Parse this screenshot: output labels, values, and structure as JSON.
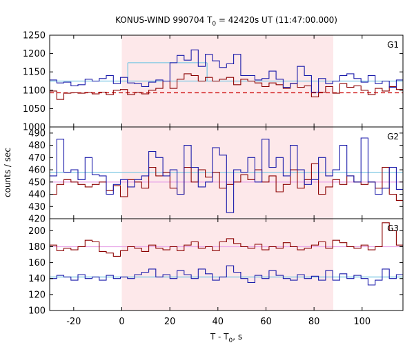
{
  "title": {
    "prefix": "KONUS-WIND 990704 T",
    "sub": "0",
    "suffix": " = 42420s UT (11:47:00.000)"
  },
  "xlabel": {
    "main": "T - T",
    "sub": "0",
    "tail": ", s"
  },
  "ylabel": "counts / sec",
  "colors": {
    "red": "#8b0000",
    "blue": "#1a1aaa",
    "shade": "#fde8ea",
    "cyan": "#7ec8e3",
    "pink": "#e8a8e8",
    "dashed": "#cc0000"
  },
  "chart_data": {
    "type": "line",
    "xlim": [
      -30,
      117
    ],
    "xticks": [
      -20,
      0,
      20,
      40,
      60,
      80,
      100
    ],
    "shaded_interval": [
      0,
      88
    ],
    "bin_width": 2.944,
    "panels": [
      {
        "name": "G1",
        "ylim": [
          1000,
          1250
        ],
        "yticks": [
          1000,
          1050,
          1100,
          1150,
          1200,
          1250
        ],
        "x_start": -30,
        "series": [
          {
            "name": "red",
            "color": "red",
            "values": [
              1098,
              1075,
              1092,
              1093,
              1092,
              1094,
              1090,
              1095,
              1088,
              1100,
              1102,
              1088,
              1094,
              1090,
              1100,
              1105,
              1125,
              1105,
              1130,
              1145,
              1140,
              1125,
              1135,
              1125,
              1130,
              1135,
              1115,
              1130,
              1125,
              1120,
              1110,
              1120,
              1115,
              1105,
              1118,
              1108,
              1112,
              1082,
              1095,
              1110,
              1092,
              1118,
              1108,
              1112,
              1100,
              1088,
              1105,
              1098,
              1110,
              1102,
              1098,
              1095,
              1078,
              1085,
              1095,
              1098,
              1088,
              1090,
              1070
            ]
          },
          {
            "name": "blue",
            "color": "blue",
            "values": [
              1128,
              1120,
              1122,
              1112,
              1115,
              1130,
              1125,
              1132,
              1140,
              1118,
              1135,
              1120,
              1118,
              1110,
              1122,
              1128,
              1125,
              1175,
              1195,
              1182,
              1210,
              1165,
              1198,
              1180,
              1162,
              1172,
              1198,
              1140,
              1140,
              1128,
              1132,
              1152,
              1130,
              1108,
              1118,
              1165,
              1140,
              1095,
              1132,
              1118,
              1125,
              1140,
              1145,
              1132,
              1122,
              1140,
              1118,
              1125,
              1108,
              1128,
              1112,
              1130,
              1120,
              1115,
              1155,
              1098,
              1118,
              1110,
              1100
            ]
          }
        ],
        "fits": [
          {
            "color": "cyan",
            "from": -30,
            "to": 117,
            "y": 1125,
            "style": "solid"
          },
          {
            "color": "dashed",
            "from": -30,
            "to": 117,
            "y": 1093,
            "style": "dashed"
          },
          {
            "color": "cyan",
            "from": 2.5,
            "to": 35.5,
            "y": 1175,
            "style": "solid",
            "with_ends": true
          }
        ]
      },
      {
        "name": "G2",
        "ylim": [
          420,
          495
        ],
        "yticks": [
          420,
          430,
          440,
          450,
          460,
          470,
          480,
          490
        ],
        "x_start": -30,
        "series": [
          {
            "name": "red",
            "color": "red",
            "values": [
              440,
              448,
              452,
              450,
              448,
              446,
              448,
              450,
              443,
              447,
              438,
              452,
              450,
              445,
              462,
              455,
              458,
              445,
              440,
              462,
              450,
              460,
              454,
              458,
              445,
              448,
              450,
              456,
              452,
              460,
              450,
              455,
              442,
              448,
              460,
              445,
              452,
              465,
              440,
              446,
              452,
              448,
              455,
              450,
              448,
              450,
              445,
              462,
              440,
              435,
              446,
              450,
              448,
              442,
              455,
              446,
              440,
              452,
              448
            ]
          },
          {
            "name": "blue",
            "color": "blue",
            "values": [
              455,
              485,
              458,
              460,
              452,
              470,
              456,
              455,
              440,
              448,
              452,
              446,
              452,
              455,
              475,
              470,
              455,
              460,
              440,
              480,
              462,
              446,
              450,
              478,
              472,
              425,
              460,
              458,
              470,
              450,
              485,
              462,
              470,
              455,
              480,
              460,
              448,
              452,
              470,
              455,
              460,
              480,
              455,
              450,
              486,
              450,
              440,
              445,
              462,
              444,
              450,
              460,
              440,
              445,
              455,
              460,
              440,
              450,
              455
            ]
          }
        ],
        "fits": [
          {
            "color": "cyan",
            "from": -30,
            "to": 117,
            "y": 458,
            "style": "solid"
          },
          {
            "color": "pink",
            "from": -30,
            "to": 117,
            "y": 450,
            "style": "solid"
          }
        ]
      },
      {
        "name": "G3",
        "ylim": [
          100,
          215
        ],
        "yticks": [
          100,
          120,
          140,
          160,
          180,
          200
        ],
        "x_start": -30,
        "series": [
          {
            "name": "red",
            "color": "red",
            "values": [
              182,
              175,
              178,
              176,
              180,
              188,
              186,
              174,
              172,
              168,
              175,
              180,
              178,
              174,
              182,
              178,
              176,
              180,
              175,
              182,
              186,
              178,
              180,
              175,
              186,
              190,
              184,
              180,
              178,
              183,
              176,
              180,
              178,
              185,
              180,
              176,
              178,
              182,
              186,
              178,
              188,
              185,
              180,
              178,
              182,
              176,
              180,
              210,
              200,
              182,
              188,
              185,
              178,
              180,
              176,
              182,
              180,
              178,
              176
            ]
          },
          {
            "name": "blue",
            "color": "blue",
            "values": [
              140,
              144,
              142,
              138,
              145,
              140,
              142,
              138,
              144,
              140,
              142,
              140,
              145,
              148,
              152,
              142,
              145,
              140,
              150,
              145,
              140,
              152,
              146,
              138,
              142,
              156,
              148,
              140,
              135,
              144,
              140,
              150,
              144,
              140,
              138,
              145,
              140,
              143,
              138,
              150,
              138,
              146,
              140,
              144,
              140,
              132,
              138,
              152,
              140,
              145,
              138,
              140,
              150,
              138,
              143,
              146,
              140,
              150,
              144
            ]
          }
        ],
        "fits": [
          {
            "color": "cyan",
            "from": -30,
            "to": 117,
            "y": 142,
            "style": "solid"
          },
          {
            "color": "pink",
            "from": -30,
            "to": 117,
            "y": 180,
            "style": "solid"
          }
        ]
      }
    ]
  }
}
